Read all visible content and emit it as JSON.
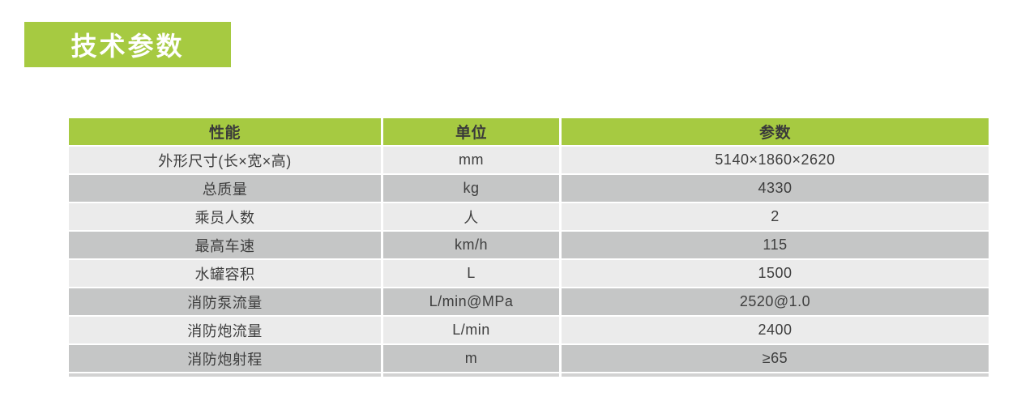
{
  "title_badge": {
    "label": "技术参数"
  },
  "table": {
    "headers": [
      "性能",
      "单位",
      "参数"
    ],
    "rows": [
      {
        "name": "外形尺寸(长×宽×高)",
        "unit": "mm",
        "value": "5140×1860×2620"
      },
      {
        "name": "总质量",
        "unit": "kg",
        "value": "4330"
      },
      {
        "name": "乘员人数",
        "unit": "人",
        "value": "2"
      },
      {
        "name": "最高车速",
        "unit": "km/h",
        "value": "115"
      },
      {
        "name": "水罐容积",
        "unit": "L",
        "value": "1500"
      },
      {
        "name": "消防泵流量",
        "unit": "L/min@MPa",
        "value": "2520@1.0"
      },
      {
        "name": "消防炮流量",
        "unit": "L/min",
        "value": "2400"
      },
      {
        "name": "消防炮射程",
        "unit": "m",
        "value": "≥65"
      }
    ]
  },
  "colors": {
    "green": "#a6ca41",
    "badge_text": "#ffffff",
    "row_light": "#ebebeb",
    "row_dark": "#c5c6c6",
    "text_dark": "#3e3e3e",
    "strip": "#d2d2d2",
    "background": "#ffffff"
  }
}
